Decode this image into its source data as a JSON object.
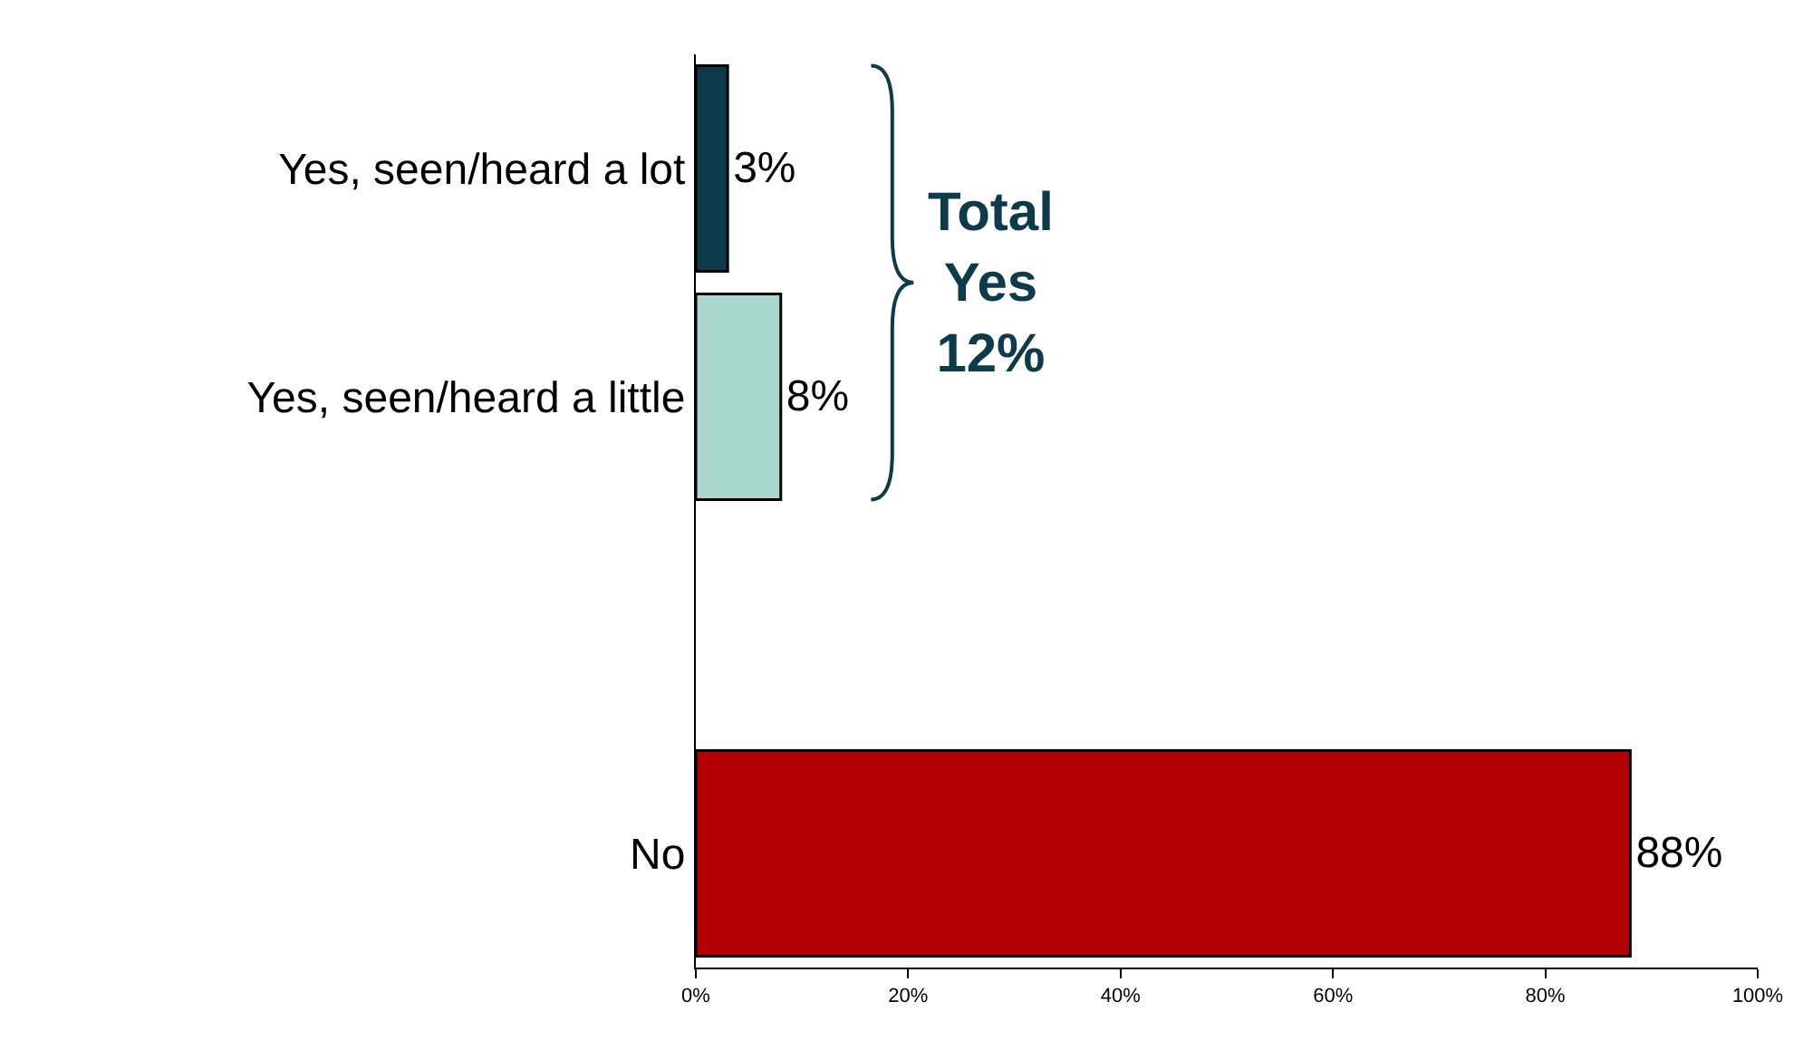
{
  "chart_data": {
    "type": "bar",
    "orientation": "horizontal",
    "categories": [
      "Yes, seen/heard a lot",
      "Yes, seen/heard a little",
      null,
      "No"
    ],
    "values": [
      3,
      8,
      null,
      88
    ],
    "colors": [
      "#0e3b4c",
      "#a9d6cf",
      null,
      "#b20000"
    ],
    "value_labels": [
      "3%",
      "8%",
      null,
      "88%"
    ],
    "xlim": [
      0,
      100
    ],
    "xticks": [
      {
        "value": 0,
        "label": "0%"
      },
      {
        "value": 20,
        "label": "20%"
      },
      {
        "value": 40,
        "label": "40%"
      },
      {
        "value": 60,
        "label": "60%"
      },
      {
        "value": 80,
        "label": "80%"
      },
      {
        "value": 100,
        "label": "100%"
      }
    ],
    "annotations": [
      "Total\nYes\n12%"
    ]
  }
}
